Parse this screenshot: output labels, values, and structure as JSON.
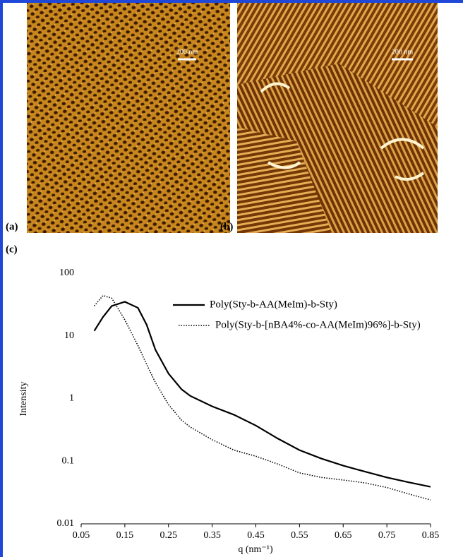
{
  "panels": {
    "a": {
      "label": "(a)",
      "scale": "200 nm"
    },
    "b": {
      "label": "(b)",
      "scale": "200 nm"
    },
    "c": {
      "label": "(c)"
    }
  },
  "chart_data": {
    "type": "line",
    "xlabel": "q (nm⁻¹)",
    "ylabel": "Intensity",
    "x": [
      0.08,
      0.1,
      0.12,
      0.15,
      0.18,
      0.2,
      0.22,
      0.25,
      0.28,
      0.3,
      0.35,
      0.4,
      0.45,
      0.5,
      0.55,
      0.6,
      0.65,
      0.7,
      0.75,
      0.8,
      0.85
    ],
    "series": [
      {
        "name": "Poly(Sty-b-AA(MeIm)-b-Sty)",
        "color": "#000000",
        "linestyle": "solid",
        "values": [
          12,
          20,
          30,
          35,
          28,
          15,
          6,
          2.5,
          1.4,
          1.1,
          0.75,
          0.55,
          0.37,
          0.23,
          0.15,
          0.11,
          0.085,
          0.068,
          0.055,
          0.046,
          0.039
        ]
      },
      {
        "name": "Poly(Sty-b-[nBA4%-co-AA(MeIm)96%]-b-Sty)",
        "color": "#000000",
        "linestyle": "dotted",
        "values": [
          30,
          44,
          40,
          18,
          7,
          3.5,
          1.8,
          0.8,
          0.45,
          0.35,
          0.22,
          0.15,
          0.12,
          0.09,
          0.065,
          0.055,
          0.05,
          0.045,
          0.038,
          0.03,
          0.024
        ]
      }
    ],
    "xlim": [
      0.05,
      0.85
    ],
    "xticks": [
      0.05,
      0.15,
      0.25,
      0.35,
      0.45,
      0.55,
      0.65,
      0.75,
      0.85
    ],
    "ylim": [
      0.01,
      100
    ],
    "yticks": [
      0.01,
      0.1,
      1,
      10,
      100
    ],
    "yscale": "log",
    "grid": false
  }
}
